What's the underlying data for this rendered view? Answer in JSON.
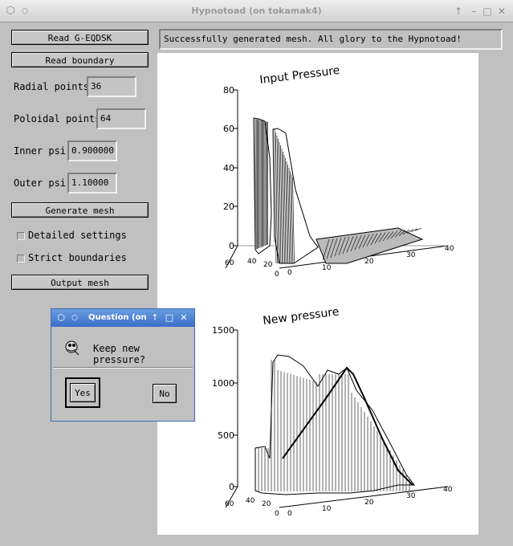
{
  "window": {
    "title": "Hypnotoad (on tokamak4)"
  },
  "buttons": {
    "read_geqdsk": "Read G-EQDSK",
    "read_boundary": "Read boundary",
    "generate_mesh": "Generate mesh",
    "output_mesh": "Output mesh"
  },
  "fields": {
    "radial_label": "Radial points:",
    "radial_value": "36",
    "poloidal_label": "Poloidal points:",
    "poloidal_value": "64",
    "inner_psi_label": "Inner psi:",
    "inner_psi_value": "0.900000",
    "outer_psi_label": "Outer psi:",
    "outer_psi_value": "1.10000"
  },
  "checkboxes": {
    "detailed": "Detailed settings",
    "strict": "Strict boundaries"
  },
  "status": "Successfully generated mesh. All glory to the Hypnotoad!",
  "plots": {
    "top": {
      "title": "Input Pressure",
      "z_ticks": [
        "80",
        "60",
        "40",
        "20",
        "0"
      ],
      "y_ticks": [
        "60",
        "40",
        "20",
        "0"
      ],
      "x_ticks": [
        "0",
        "10",
        "20",
        "30",
        "40"
      ]
    },
    "bottom": {
      "title": "New pressure",
      "z_ticks": [
        "1500",
        "1000",
        "500",
        "0"
      ],
      "y_ticks": [
        "60",
        "40",
        "20",
        "0"
      ],
      "x_ticks": [
        "0",
        "10",
        "20",
        "30",
        "40"
      ]
    }
  },
  "dialog": {
    "title": "Question (on to",
    "message": "Keep new pressure?",
    "yes": "Yes",
    "no": "No"
  },
  "icons": {
    "app": "cube-icon",
    "question": "toad-icon"
  }
}
